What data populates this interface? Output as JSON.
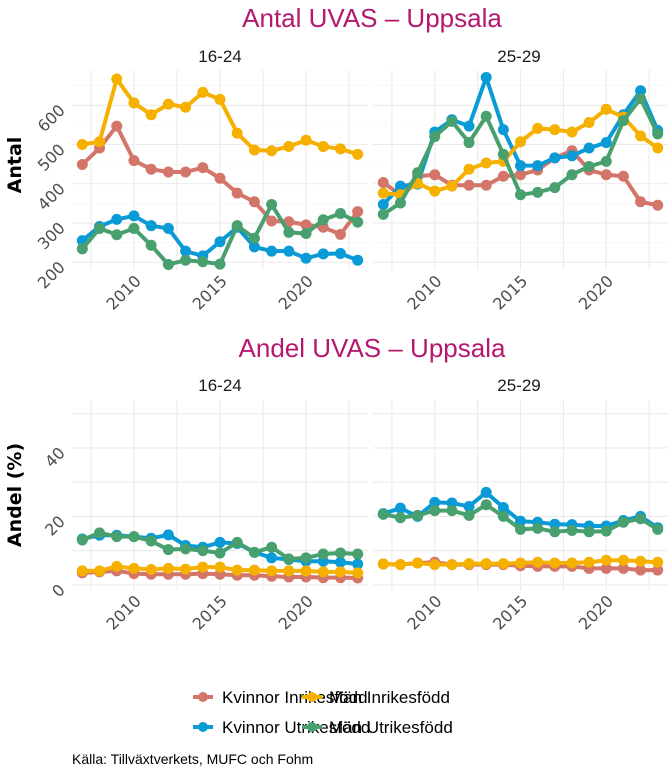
{
  "chart_data": [
    {
      "type": "line",
      "title": "Antal UVAS – Uppsala",
      "ylabel": "Antal",
      "xlabel": "",
      "ylim": [
        180,
        690
      ],
      "yticks": [
        200,
        300,
        400,
        500,
        600
      ],
      "xlim": [
        2006.4,
        2023.6
      ],
      "xticks": [
        2010,
        2015,
        2020
      ],
      "x": [
        2007,
        2008,
        2009,
        2010,
        2011,
        2012,
        2013,
        2014,
        2015,
        2016,
        2017,
        2018,
        2019,
        2020,
        2021,
        2022,
        2023
      ],
      "grid": true,
      "panels": [
        {
          "label": "16-24",
          "series": [
            {
              "name": "Kvinnor Inrikesfödd",
              "values": [
                449,
                491,
                547,
                459,
                437,
                430,
                430,
                441,
                414,
                376,
                354,
                305,
                303,
                295,
                289,
                271,
                329
              ]
            },
            {
              "name": "Kvinnor Utrikesfödd",
              "values": [
                255,
                291,
                309,
                318,
                293,
                286,
                228,
                216,
                252,
                289,
                239,
                228,
                228,
                210,
                221,
                222,
                205
              ]
            },
            {
              "name": "Män Inrikesfödd",
              "values": [
                500,
                507,
                667,
                606,
                576,
                603,
                595,
                633,
                615,
                529,
                486,
                484,
                495,
                511,
                495,
                489,
                475
              ]
            },
            {
              "name": "Män Utrikesfödd",
              "values": [
                234,
                286,
                270,
                286,
                243,
                194,
                205,
                201,
                195,
                293,
                261,
                347,
                276,
                273,
                308,
                324,
                302
              ]
            }
          ]
        },
        {
          "label": "25-29",
          "series": [
            {
              "name": "Kvinnor Inrikesfödd",
              "values": [
                403,
                372,
                419,
                423,
                396,
                396,
                396,
                419,
                423,
                435,
                466,
                484,
                435,
                423,
                419,
                354,
                345
              ]
            },
            {
              "name": "Kvinnor Utrikesfödd",
              "values": [
                347,
                394,
                399,
                532,
                563,
                547,
                671,
                538,
                446,
                446,
                466,
                471,
                491,
                505,
                576,
                637,
                536
              ]
            },
            {
              "name": "Män Inrikesfödd",
              "values": [
                376,
                372,
                401,
                381,
                394,
                437,
                453,
                457,
                507,
                541,
                538,
                532,
                556,
                590,
                570,
                522,
                491
              ]
            },
            {
              "name": "Män Utrikesfödd",
              "values": [
                322,
                351,
                428,
                520,
                559,
                505,
                572,
                475,
                372,
                378,
                390,
                423,
                444,
                457,
                561,
                617,
                527
              ]
            }
          ]
        }
      ]
    },
    {
      "type": "line",
      "title": "Andel UVAS – Uppsala",
      "ylabel": "Andel (%)",
      "xlabel": "",
      "ylim": [
        -1.5,
        54
      ],
      "yticks": [
        0,
        20,
        40
      ],
      "xlim": [
        2006.4,
        2023.6
      ],
      "xticks": [
        2010,
        2015,
        2020
      ],
      "x": [
        2007,
        2008,
        2009,
        2010,
        2011,
        2012,
        2013,
        2014,
        2015,
        2016,
        2017,
        2018,
        2019,
        2020,
        2021,
        2022,
        2023
      ],
      "grid": true,
      "panels": [
        {
          "label": "16-24",
          "series": [
            {
              "name": "Kvinnor Inrikesfödd",
              "values": [
                3.5,
                3.8,
                4.1,
                3.3,
                3.1,
                3.1,
                3.1,
                3.3,
                3.1,
                2.8,
                2.8,
                2.5,
                2.3,
                2.3,
                2.1,
                2.1,
                2.0
              ]
            },
            {
              "name": "Kvinnor Utrikesfödd",
              "values": [
                13.4,
                14.5,
                14.5,
                14.1,
                13.6,
                14.6,
                11.5,
                11.0,
                12.4,
                12.1,
                9.5,
                7.9,
                7.4,
                6.9,
                6.9,
                6.6,
                6.1
              ]
            },
            {
              "name": "Män Inrikesfödd",
              "values": [
                4.1,
                4.1,
                5.4,
                4.8,
                4.5,
                4.8,
                4.6,
                5.2,
                5.2,
                4.3,
                4.3,
                4.1,
                4.1,
                4.1,
                3.8,
                3.8,
                3.5
              ]
            },
            {
              "name": "Män Utrikesfödd",
              "values": [
                13.1,
                15.2,
                14.1,
                14.1,
                12.8,
                10.3,
                10.5,
                10.0,
                9.3,
                12.4,
                9.5,
                11.0,
                7.6,
                7.9,
                9.0,
                9.3,
                9.0
              ]
            }
          ]
        },
        {
          "label": "25-29",
          "series": [
            {
              "name": "Kvinnor Inrikesfödd",
              "values": [
                6.1,
                5.9,
                6.4,
                6.6,
                5.9,
                5.9,
                5.9,
                5.9,
                5.6,
                5.4,
                5.4,
                5.4,
                4.8,
                4.8,
                4.8,
                4.3,
                4.3
              ]
            },
            {
              "name": "Kvinnor Utrikesfödd",
              "values": [
                20.8,
                22.4,
                20.0,
                24.1,
                23.9,
                22.9,
                27.0,
                22.6,
                18.6,
                18.3,
                17.7,
                17.6,
                17.2,
                17.2,
                18.8,
                20.0,
                16.7
              ]
            },
            {
              "name": "Män Inrikesfödd",
              "values": [
                6.1,
                5.9,
                6.4,
                5.9,
                5.9,
                6.2,
                6.2,
                6.2,
                6.4,
                6.6,
                6.4,
                6.4,
                6.6,
                7.2,
                7.2,
                6.9,
                6.6
              ]
            },
            {
              "name": "Män Utrikesfödd",
              "values": [
                20.6,
                19.6,
                20.3,
                21.7,
                21.7,
                20.3,
                23.4,
                20.0,
                16.2,
                16.5,
                15.5,
                15.9,
                15.5,
                15.7,
                18.3,
                19.3,
                16.2
              ]
            }
          ]
        }
      ]
    }
  ],
  "legend": {
    "position": "bottom",
    "items": [
      {
        "name": "Kvinnor Inrikesfödd",
        "color": "#d4756a"
      },
      {
        "name": "Män Inrikesfödd",
        "color": "#f5b000"
      },
      {
        "name": "Kvinnor Utrikesfödd",
        "color": "#0a9bd6"
      },
      {
        "name": "Män Utrikesfödd",
        "color": "#47a06e"
      }
    ]
  },
  "series_colors": {
    "Kvinnor Inrikesfödd": "#d4756a",
    "Kvinnor Utrikesfödd": "#0a9bd6",
    "Män Inrikesfödd": "#f5b000",
    "Män Utrikesfödd": "#47a06e"
  },
  "caption": "Källa: Tillväxtverkets, MUFC och Fohm"
}
